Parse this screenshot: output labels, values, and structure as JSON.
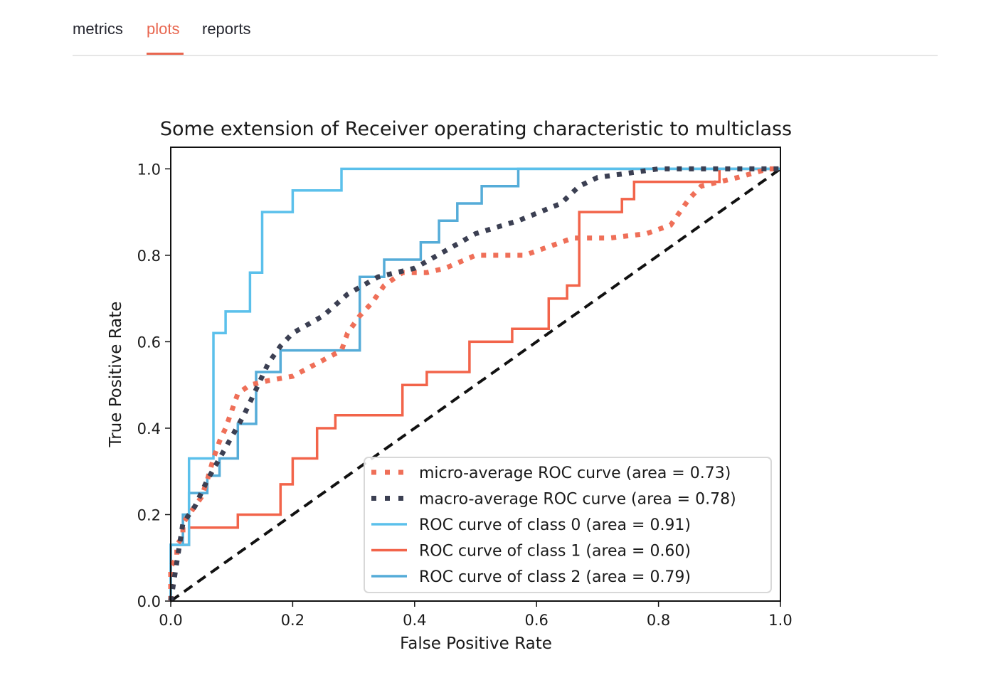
{
  "tabs": [
    {
      "label": "metrics",
      "active": false
    },
    {
      "label": "plots",
      "active": true
    },
    {
      "label": "reports",
      "active": false
    }
  ],
  "colors": {
    "accent": "#e8664f",
    "micro": "#ef6f58",
    "macro": "#3b3f52",
    "class0": "#5bc0eb",
    "class1": "#f2644a",
    "class2": "#55acd8",
    "chance": "#111111"
  },
  "chart_data": {
    "type": "line",
    "title": "Some extension of Receiver operating characteristic to multiclass",
    "xlabel": "False Positive Rate",
    "ylabel": "True Positive Rate",
    "xlim": [
      0.0,
      1.0
    ],
    "ylim": [
      0.0,
      1.05
    ],
    "xticks": [
      "0.0",
      "0.2",
      "0.4",
      "0.6",
      "0.8",
      "1.0"
    ],
    "yticks": [
      "0.0",
      "0.2",
      "0.4",
      "0.6",
      "0.8",
      "1.0"
    ],
    "legend_position": "lower right",
    "grid": false,
    "series": [
      {
        "name": "micro-average ROC curve (area = 0.73)",
        "style": "dotted",
        "x": [
          0,
          0,
          0.01,
          0.01,
          0.02,
          0.02,
          0.03,
          0.04,
          0.05,
          0.06,
          0.07,
          0.08,
          0.09,
          0.1,
          0.11,
          0.13,
          0.16,
          0.2,
          0.24,
          0.28,
          0.29,
          0.31,
          0.33,
          0.35,
          0.38,
          0.42,
          0.45,
          0.5,
          0.58,
          0.62,
          0.66,
          0.72,
          0.78,
          0.82,
          0.83,
          0.85,
          0.87,
          0.93,
          0.98,
          1.0
        ],
        "y": [
          0,
          0.08,
          0.1,
          0.13,
          0.15,
          0.18,
          0.2,
          0.22,
          0.24,
          0.28,
          0.33,
          0.37,
          0.4,
          0.44,
          0.48,
          0.5,
          0.51,
          0.52,
          0.55,
          0.58,
          0.62,
          0.66,
          0.69,
          0.73,
          0.76,
          0.76,
          0.77,
          0.8,
          0.8,
          0.82,
          0.84,
          0.84,
          0.85,
          0.87,
          0.89,
          0.93,
          0.96,
          0.98,
          1.0,
          1.0
        ]
      },
      {
        "name": "macro-average ROC curve (area = 0.78)",
        "style": "dotted",
        "x": [
          0,
          0.02,
          0.04,
          0.06,
          0.08,
          0.1,
          0.12,
          0.14,
          0.16,
          0.18,
          0.2,
          0.25,
          0.29,
          0.34,
          0.4,
          0.45,
          0.5,
          0.57,
          0.64,
          0.67,
          0.7,
          0.75,
          0.8,
          0.88,
          1.0
        ],
        "y": [
          0,
          0.18,
          0.22,
          0.28,
          0.33,
          0.38,
          0.43,
          0.49,
          0.55,
          0.59,
          0.62,
          0.66,
          0.71,
          0.75,
          0.77,
          0.81,
          0.85,
          0.88,
          0.92,
          0.96,
          0.98,
          0.99,
          1.0,
          1.0,
          1.0
        ]
      },
      {
        "name": "ROC curve of class 0 (area = 0.91)",
        "style": "solid",
        "x": [
          0,
          0,
          0.03,
          0.03,
          0.07,
          0.07,
          0.09,
          0.09,
          0.13,
          0.13,
          0.15,
          0.15,
          0.2,
          0.2,
          0.28,
          0.28,
          1.0
        ],
        "y": [
          0,
          0.13,
          0.13,
          0.33,
          0.33,
          0.62,
          0.62,
          0.67,
          0.67,
          0.76,
          0.76,
          0.9,
          0.9,
          0.95,
          0.95,
          1.0,
          1.0
        ]
      },
      {
        "name": "ROC curve of class 1 (area = 0.60)",
        "style": "solid",
        "x": [
          0,
          0,
          0.03,
          0.03,
          0.11,
          0.11,
          0.18,
          0.18,
          0.2,
          0.2,
          0.24,
          0.24,
          0.27,
          0.27,
          0.38,
          0.38,
          0.42,
          0.42,
          0.49,
          0.49,
          0.56,
          0.56,
          0.62,
          0.62,
          0.65,
          0.65,
          0.67,
          0.67,
          0.74,
          0.74,
          0.76,
          0.76,
          0.9,
          0.9,
          1.0
        ],
        "y": [
          0,
          0.13,
          0.13,
          0.17,
          0.17,
          0.2,
          0.2,
          0.27,
          0.27,
          0.33,
          0.33,
          0.4,
          0.4,
          0.43,
          0.43,
          0.5,
          0.5,
          0.53,
          0.53,
          0.6,
          0.6,
          0.63,
          0.63,
          0.7,
          0.7,
          0.73,
          0.73,
          0.9,
          0.9,
          0.93,
          0.93,
          0.97,
          0.97,
          1.0,
          1.0
        ]
      },
      {
        "name": "ROC curve of class 2 (area = 0.79)",
        "style": "solid",
        "x": [
          0,
          0,
          0.02,
          0.02,
          0.03,
          0.03,
          0.06,
          0.06,
          0.08,
          0.08,
          0.11,
          0.11,
          0.14,
          0.14,
          0.18,
          0.18,
          0.31,
          0.31,
          0.35,
          0.35,
          0.41,
          0.41,
          0.44,
          0.44,
          0.47,
          0.47,
          0.51,
          0.51,
          0.57,
          0.57,
          1.0
        ],
        "y": [
          0,
          0.13,
          0.13,
          0.2,
          0.2,
          0.25,
          0.25,
          0.29,
          0.29,
          0.33,
          0.33,
          0.41,
          0.41,
          0.53,
          0.53,
          0.58,
          0.58,
          0.75,
          0.75,
          0.79,
          0.79,
          0.83,
          0.83,
          0.88,
          0.88,
          0.92,
          0.92,
          0.96,
          0.96,
          1.0,
          1.0
        ]
      },
      {
        "name": "",
        "style": "dashed",
        "x": [
          0,
          1.0
        ],
        "y": [
          0,
          1.0
        ]
      }
    ]
  }
}
